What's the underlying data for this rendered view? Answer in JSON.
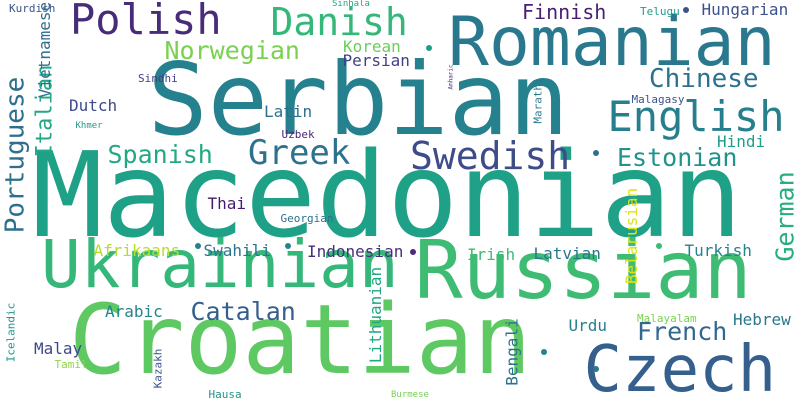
{
  "words": [
    {
      "text": "Macedonian",
      "color": "#1fa187",
      "vertical": false
    },
    {
      "text": "Serbian",
      "color": "#26818e",
      "vertical": false
    },
    {
      "text": "Croatian",
      "color": "#5ec962",
      "vertical": false
    },
    {
      "text": "Russian",
      "color": "#3fbc73",
      "vertical": false
    },
    {
      "text": "Ukrainian",
      "color": "#35b779",
      "vertical": false
    },
    {
      "text": "Romanian",
      "color": "#2a788e",
      "vertical": false
    },
    {
      "text": "Czech",
      "color": "#355f8d",
      "vertical": false
    },
    {
      "text": "Polish",
      "color": "#472c7a",
      "vertical": false
    },
    {
      "text": "Danish",
      "color": "#35b779",
      "vertical": false
    },
    {
      "text": "English",
      "color": "#277f8e",
      "vertical": false
    },
    {
      "text": "Swedish",
      "color": "#3e4c8a",
      "vertical": false
    },
    {
      "text": "Greek",
      "color": "#2c718e",
      "vertical": false
    },
    {
      "text": "Chinese",
      "color": "#2c728e",
      "vertical": false
    },
    {
      "text": "Estonian",
      "color": "#20938c",
      "vertical": false
    },
    {
      "text": "Spanish",
      "color": "#22a884",
      "vertical": false
    },
    {
      "text": "Catalan",
      "color": "#345e8d",
      "vertical": false
    },
    {
      "text": "French",
      "color": "#31688e",
      "vertical": false
    },
    {
      "text": "Norwegian",
      "color": "#7ad151",
      "vertical": false
    },
    {
      "text": "Portuguese",
      "color": "#2e6f8e",
      "vertical": true
    },
    {
      "text": "German",
      "color": "#27ad81",
      "vertical": true
    },
    {
      "text": "Italian",
      "color": "#22a884",
      "vertical": true
    },
    {
      "text": "Finnish",
      "color": "#481f70",
      "vertical": false
    },
    {
      "text": "Hungarian",
      "color": "#3b528b",
      "vertical": false
    },
    {
      "text": "Korean",
      "color": "#6ccd5a",
      "vertical": false
    },
    {
      "text": "Persian",
      "color": "#424086",
      "vertical": false
    },
    {
      "text": "Dutch",
      "color": "#3e4a89",
      "vertical": false
    },
    {
      "text": "Latin",
      "color": "#2d708e",
      "vertical": false
    },
    {
      "text": "Hindi",
      "color": "#1f9e89",
      "vertical": false
    },
    {
      "text": "Thai",
      "color": "#481a6c",
      "vertical": false
    },
    {
      "text": "Indonesian",
      "color": "#472d7b",
      "vertical": false
    },
    {
      "text": "Swahili",
      "color": "#2b758e",
      "vertical": false
    },
    {
      "text": "Afrikaans",
      "color": "#b5de2b",
      "vertical": false
    },
    {
      "text": "Latvian",
      "color": "#2a788e",
      "vertical": false
    },
    {
      "text": "Turkish",
      "color": "#26828e",
      "vertical": false
    },
    {
      "text": "Irish",
      "color": "#3bbb75",
      "vertical": false
    },
    {
      "text": "Arabic",
      "color": "#25848e",
      "vertical": false
    },
    {
      "text": "Malay",
      "color": "#3e4989",
      "vertical": false
    },
    {
      "text": "Hebrew",
      "color": "#2a778e",
      "vertical": false
    },
    {
      "text": "Urdu",
      "color": "#27808e",
      "vertical": false
    },
    {
      "text": "Malayalam",
      "color": "#7ad151",
      "vertical": false
    },
    {
      "text": "Tamil",
      "color": "#8ed645",
      "vertical": false
    },
    {
      "text": "Kurdish",
      "color": "#3a538b",
      "vertical": false
    },
    {
      "text": "Vietnamese",
      "color": "#2e6e8e",
      "vertical": true
    },
    {
      "text": "Sindhi",
      "color": "#433e85",
      "vertical": false
    },
    {
      "text": "Khmer",
      "color": "#1f9a8a",
      "vertical": false
    },
    {
      "text": "Uzbek",
      "color": "#482677",
      "vertical": false
    },
    {
      "text": "Georgian",
      "color": "#2d718e",
      "vertical": false
    },
    {
      "text": "Marathi",
      "color": "#2a788e",
      "vertical": true
    },
    {
      "text": "Malagasy",
      "color": "#3b528b",
      "vertical": false
    },
    {
      "text": "Telugu",
      "color": "#1f9e89",
      "vertical": false
    },
    {
      "text": "Sinhala",
      "color": "#20a386",
      "vertical": false
    },
    {
      "text": "Amharic",
      "color": "#472c7a",
      "vertical": true
    },
    {
      "text": "Belarusian",
      "color": "#dde318",
      "vertical": true
    },
    {
      "text": "Lithuanian",
      "color": "#22a884",
      "vertical": true
    },
    {
      "text": "Bengali",
      "color": "#2c728e",
      "vertical": true
    },
    {
      "text": "Icelandic",
      "color": "#1f968b",
      "vertical": true
    },
    {
      "text": "Kazakh",
      "color": "#3b528b",
      "vertical": true
    },
    {
      "text": "Hausa",
      "color": "#1f958b",
      "vertical": false
    },
    {
      "text": "Burmese",
      "color": "#75d054",
      "vertical": false
    }
  ]
}
